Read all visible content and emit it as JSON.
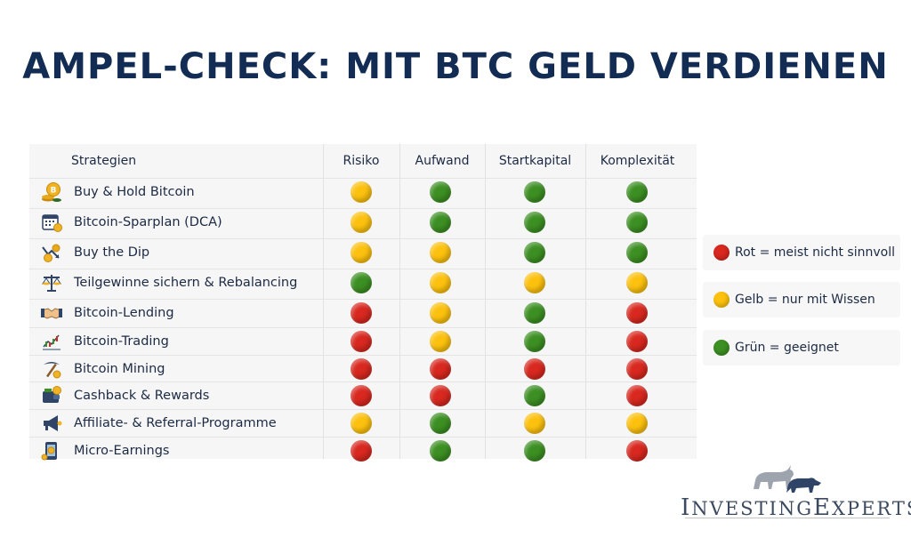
{
  "title": "AMPEL-CHECK: MIT BTC GELD VERDIENEN",
  "colors": {
    "red": "#d8281f",
    "yellow": "#fcc10e",
    "green": "#3c8f22"
  },
  "table": {
    "headers": [
      "Strategien",
      "Risiko",
      "Aufwand",
      "Startkapital",
      "Komplexität"
    ],
    "rows": [
      {
        "icon": "bitcoin-coins-icon",
        "label": "Buy & Hold Bitcoin",
        "ratings": [
          "yellow",
          "green",
          "green",
          "green"
        ]
      },
      {
        "icon": "calendar-coins-icon",
        "label": "Bitcoin-Sparplan (DCA)",
        "ratings": [
          "yellow",
          "green",
          "green",
          "green"
        ]
      },
      {
        "icon": "dip-chart-coins-icon",
        "label": "Buy the Dip",
        "ratings": [
          "yellow",
          "yellow",
          "green",
          "green"
        ]
      },
      {
        "icon": "balance-scale-icon",
        "label": "Teilgewinne sichern & Rebalancing",
        "ratings": [
          "green",
          "yellow",
          "yellow",
          "yellow"
        ]
      },
      {
        "icon": "handshake-icon",
        "label": "Bitcoin-Lending",
        "ratings": [
          "red",
          "yellow",
          "green",
          "red"
        ]
      },
      {
        "icon": "trading-chart-icon",
        "label": "Bitcoin-Trading",
        "ratings": [
          "red",
          "yellow",
          "green",
          "red"
        ]
      },
      {
        "icon": "pickaxe-icon",
        "label": "Bitcoin Mining",
        "ratings": [
          "red",
          "red",
          "red",
          "red"
        ]
      },
      {
        "icon": "wallet-icon",
        "label": "Cashback & Rewards",
        "ratings": [
          "red",
          "red",
          "green",
          "red"
        ]
      },
      {
        "icon": "megaphone-icon",
        "label": "Affiliate- & Referral-Programme",
        "ratings": [
          "yellow",
          "green",
          "yellow",
          "yellow"
        ]
      },
      {
        "icon": "phone-coin-icon",
        "label": "Micro-Earnings",
        "ratings": [
          "red",
          "green",
          "green",
          "red"
        ]
      }
    ]
  },
  "legend": [
    {
      "color": "red",
      "text": "Rot = meist nicht sinnvoll"
    },
    {
      "color": "yellow",
      "text": "Gelb = nur mit Wissen"
    },
    {
      "color": "green",
      "text": "Grün = geeignet"
    }
  ],
  "logo": {
    "brand_first": "I",
    "brand_rest1": "NVESTING",
    "brand_second": "E",
    "brand_rest2": "XPERTS"
  }
}
